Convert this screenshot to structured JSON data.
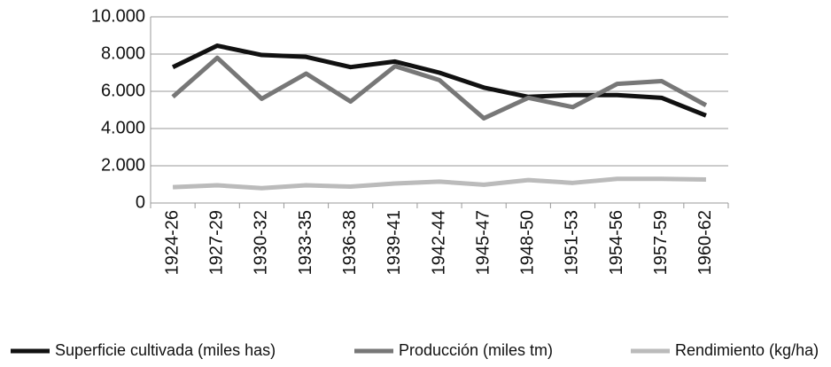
{
  "chart_data": {
    "type": "line",
    "categories": [
      "1924-26",
      "1927-29",
      "1930-32",
      "1933-35",
      "1936-38",
      "1939-41",
      "1942-44",
      "1945-47",
      "1948-50",
      "1951-53",
      "1954-56",
      "1957-59",
      "1960-62"
    ],
    "series": [
      {
        "name": "Superficie cultivada (miles has)",
        "color": "#111111",
        "values": [
          7300,
          8450,
          7950,
          7850,
          7300,
          7600,
          7000,
          6200,
          5700,
          5800,
          5800,
          5650,
          4700
        ]
      },
      {
        "name": "Producción (miles tm)",
        "color": "#777777",
        "values": [
          5700,
          7800,
          5600,
          6950,
          5450,
          7350,
          6600,
          4550,
          5650,
          5150,
          6400,
          6550,
          5250
        ]
      },
      {
        "name": "Rendimiento (kg/ha)",
        "color": "#bbbbbb",
        "values": [
          850,
          950,
          800,
          950,
          880,
          1050,
          1150,
          980,
          1230,
          1080,
          1300,
          1300,
          1260
        ]
      }
    ],
    "ylim": [
      0,
      10000
    ],
    "yticks": [
      0,
      {
        "value": 2000,
        "label": "2.000"
      },
      {
        "value": 4000,
        "label": "4.000"
      },
      {
        "value": 6000,
        "label": "6.000"
      },
      {
        "value": 8000,
        "label": "8.000"
      },
      {
        "value": 10000,
        "label": "10.000"
      }
    ],
    "grid": true
  }
}
